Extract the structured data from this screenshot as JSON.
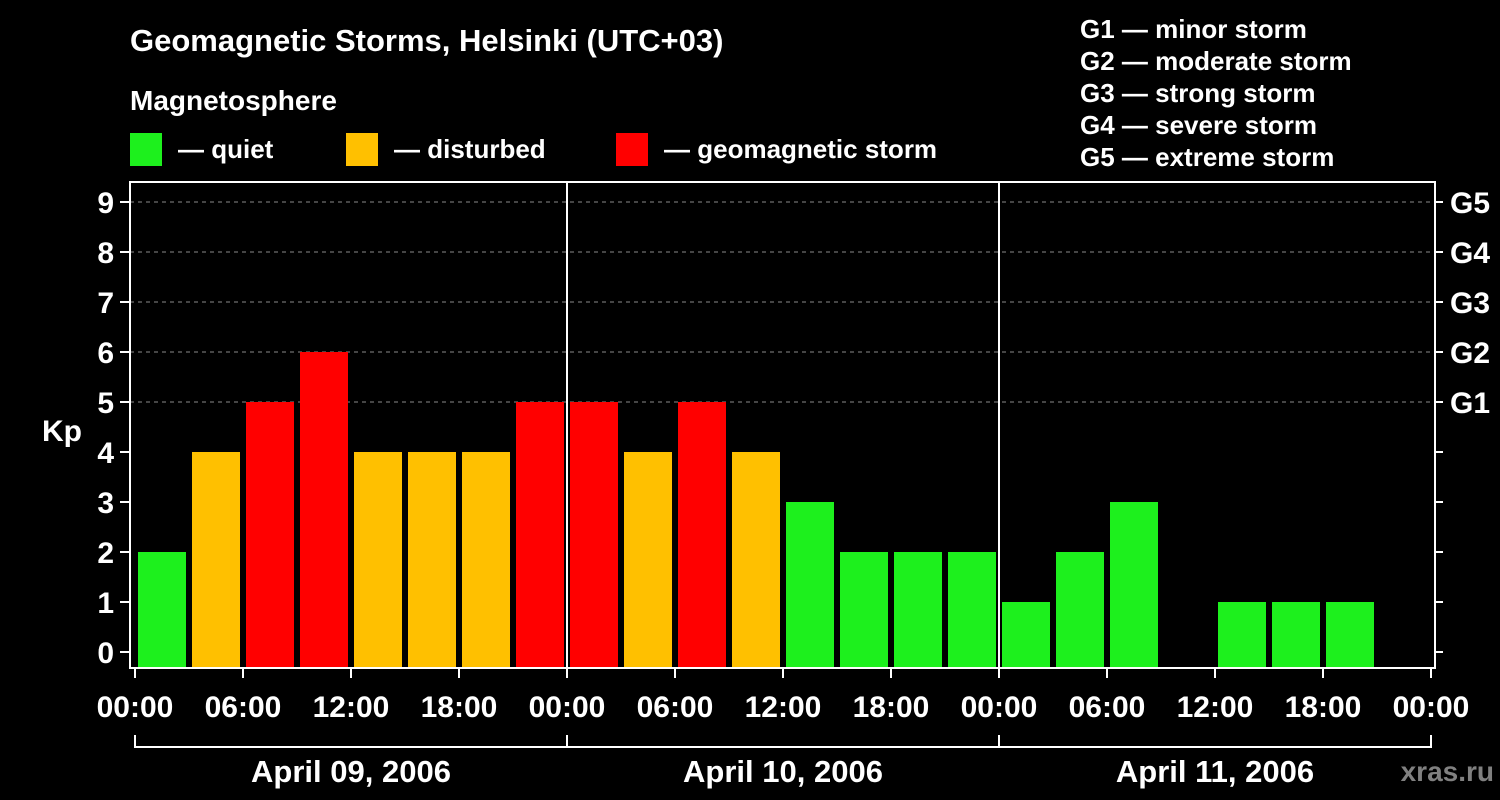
{
  "chart_data": {
    "type": "bar",
    "title": "Geomagnetic Storms, Helsinki (UTC+03)",
    "legend": {
      "title": "Magnetosphere",
      "items": [
        {
          "label": "— quiet",
          "color": "#1df01d"
        },
        {
          "label": "— disturbed",
          "color": "#ffc000"
        },
        {
          "label": "— geomagnetic storm",
          "color": "#ff0000"
        }
      ]
    },
    "storm_scale": [
      "G1 — minor storm",
      "G2 — moderate storm",
      "G3 — strong storm",
      "G4 — severe storm",
      "G5 — extreme storm"
    ],
    "ylabel": "Kp",
    "ylim": [
      0,
      9
    ],
    "y_ticks": [
      0,
      1,
      2,
      3,
      4,
      5,
      6,
      7,
      8,
      9
    ],
    "right_axis": [
      {
        "kp": 5,
        "label": "G1"
      },
      {
        "kp": 6,
        "label": "G2"
      },
      {
        "kp": 7,
        "label": "G3"
      },
      {
        "kp": 8,
        "label": "G4"
      },
      {
        "kp": 9,
        "label": "G5"
      }
    ],
    "grid_at": [
      5,
      6,
      7,
      8,
      9
    ],
    "x_tick_labels": [
      "00:00",
      "06:00",
      "12:00",
      "18:00",
      "00:00",
      "06:00",
      "12:00",
      "18:00",
      "00:00",
      "06:00",
      "12:00",
      "18:00",
      "00:00"
    ],
    "days": [
      {
        "label": "April 09, 2006",
        "kp": [
          2,
          4,
          5,
          6,
          4,
          4,
          4,
          5
        ]
      },
      {
        "label": "April 10, 2006",
        "kp": [
          5,
          4,
          5,
          4,
          3,
          2,
          2,
          2
        ]
      },
      {
        "label": "April 11, 2006",
        "kp": [
          1,
          2,
          3,
          null,
          1,
          1,
          1,
          null
        ]
      }
    ]
  },
  "watermark": "xras.ru"
}
